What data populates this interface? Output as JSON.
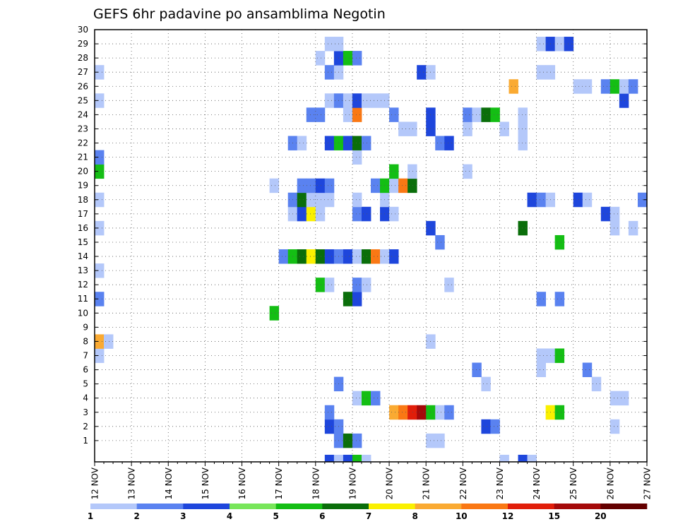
{
  "chart_data": {
    "type": "heatmap",
    "title": "GEFS 6hr padavine po ansamblima Negotin",
    "xlabel": "",
    "ylabel": "",
    "x_tick_labels": [
      "12 NOV",
      "13 NOV",
      "14 NOV",
      "15 NOV",
      "16 NOV",
      "17 NOV",
      "18 NOV",
      "19 NOV",
      "20 NOV",
      "21 NOV",
      "22 NOV",
      "23 NOV",
      "24 NOV",
      "25 NOV",
      "26 NOV",
      "27 NOV"
    ],
    "x_steps_per_day": 4,
    "y_tick_labels": [
      "1",
      "2",
      "3",
      "4",
      "5",
      "6",
      "7",
      "8",
      "9",
      "10",
      "11",
      "12",
      "13",
      "14",
      "15",
      "16",
      "17",
      "18",
      "19",
      "20",
      "21",
      "22",
      "23",
      "24",
      "25",
      "26",
      "27",
      "28",
      "29",
      "30"
    ],
    "grid": true,
    "colorbar": {
      "labels": [
        "1",
        "2",
        "3",
        "4",
        "5",
        "6",
        "7",
        "8",
        "10",
        "12",
        "15",
        "20"
      ],
      "colors": [
        "#b4c8fa",
        "#5a82f0",
        "#1e46dc",
        "#78e65a",
        "#14be14",
        "#0a6e0a",
        "#faf000",
        "#faaa32",
        "#fa7814",
        "#e11e0a",
        "#a50a0a",
        "#640000"
      ]
    },
    "cells": [
      {
        "x": 25,
        "y": 0,
        "v": 3
      },
      {
        "x": 26,
        "y": 0,
        "v": 1
      },
      {
        "x": 27,
        "y": 0,
        "v": 3
      },
      {
        "x": 28,
        "y": 0,
        "v": 5
      },
      {
        "x": 29,
        "y": 0,
        "v": 1
      },
      {
        "x": 44,
        "y": 0,
        "v": 1
      },
      {
        "x": 46,
        "y": 0,
        "v": 3
      },
      {
        "x": 47,
        "y": 0,
        "v": 1
      },
      {
        "x": 26,
        "y": 1,
        "v": 2
      },
      {
        "x": 27,
        "y": 1,
        "v": 6
      },
      {
        "x": 28,
        "y": 1,
        "v": 2
      },
      {
        "x": 36,
        "y": 1,
        "v": 1
      },
      {
        "x": 37,
        "y": 1,
        "v": 1
      },
      {
        "x": 25,
        "y": 2,
        "v": 3
      },
      {
        "x": 26,
        "y": 2,
        "v": 2
      },
      {
        "x": 42,
        "y": 2,
        "v": 3
      },
      {
        "x": 43,
        "y": 2,
        "v": 2
      },
      {
        "x": 56,
        "y": 2,
        "v": 1
      },
      {
        "x": 25,
        "y": 3,
        "v": 2
      },
      {
        "x": 32,
        "y": 3,
        "v": 8
      },
      {
        "x": 33,
        "y": 3,
        "v": 10
      },
      {
        "x": 34,
        "y": 3,
        "v": 12
      },
      {
        "x": 35,
        "y": 3,
        "v": 15
      },
      {
        "x": 36,
        "y": 3,
        "v": 5
      },
      {
        "x": 37,
        "y": 3,
        "v": 1
      },
      {
        "x": 38,
        "y": 3,
        "v": 2
      },
      {
        "x": 49,
        "y": 3,
        "v": 7
      },
      {
        "x": 50,
        "y": 3,
        "v": 5
      },
      {
        "x": 28,
        "y": 4,
        "v": 1
      },
      {
        "x": 29,
        "y": 4,
        "v": 5
      },
      {
        "x": 30,
        "y": 4,
        "v": 2
      },
      {
        "x": 56,
        "y": 4,
        "v": 1
      },
      {
        "x": 57,
        "y": 4,
        "v": 1
      },
      {
        "x": 26,
        "y": 5,
        "v": 2
      },
      {
        "x": 42,
        "y": 5,
        "v": 1
      },
      {
        "x": 54,
        "y": 5,
        "v": 1
      },
      {
        "x": 41,
        "y": 6,
        "v": 2
      },
      {
        "x": 48,
        "y": 6,
        "v": 1
      },
      {
        "x": 53,
        "y": 6,
        "v": 2
      },
      {
        "x": 0,
        "y": 7,
        "v": 1
      },
      {
        "x": 48,
        "y": 7,
        "v": 1
      },
      {
        "x": 49,
        "y": 7,
        "v": 1
      },
      {
        "x": 50,
        "y": 7,
        "v": 5
      },
      {
        "x": 0,
        "y": 8,
        "v": 8
      },
      {
        "x": 1,
        "y": 8,
        "v": 1
      },
      {
        "x": 36,
        "y": 8,
        "v": 1
      },
      {
        "x": 19,
        "y": 10,
        "v": 5
      },
      {
        "x": 0,
        "y": 11,
        "v": 2
      },
      {
        "x": 27,
        "y": 11,
        "v": 6
      },
      {
        "x": 28,
        "y": 11,
        "v": 3
      },
      {
        "x": 48,
        "y": 11,
        "v": 2
      },
      {
        "x": 50,
        "y": 11,
        "v": 2
      },
      {
        "x": 24,
        "y": 12,
        "v": 5
      },
      {
        "x": 25,
        "y": 12,
        "v": 1
      },
      {
        "x": 28,
        "y": 12,
        "v": 2
      },
      {
        "x": 29,
        "y": 12,
        "v": 1
      },
      {
        "x": 38,
        "y": 12,
        "v": 1
      },
      {
        "x": 0,
        "y": 13,
        "v": 1
      },
      {
        "x": 20,
        "y": 14,
        "v": 2
      },
      {
        "x": 21,
        "y": 14,
        "v": 5
      },
      {
        "x": 22,
        "y": 14,
        "v": 6
      },
      {
        "x": 23,
        "y": 14,
        "v": 7
      },
      {
        "x": 24,
        "y": 14,
        "v": 6
      },
      {
        "x": 25,
        "y": 14,
        "v": 3
      },
      {
        "x": 26,
        "y": 14,
        "v": 2
      },
      {
        "x": 27,
        "y": 14,
        "v": 3
      },
      {
        "x": 28,
        "y": 14,
        "v": 1
      },
      {
        "x": 29,
        "y": 14,
        "v": 6
      },
      {
        "x": 30,
        "y": 14,
        "v": 10
      },
      {
        "x": 31,
        "y": 14,
        "v": 1
      },
      {
        "x": 32,
        "y": 14,
        "v": 3
      },
      {
        "x": 37,
        "y": 15,
        "v": 2
      },
      {
        "x": 50,
        "y": 15,
        "v": 5
      },
      {
        "x": 0,
        "y": 16,
        "v": 1
      },
      {
        "x": 36,
        "y": 16,
        "v": 3
      },
      {
        "x": 46,
        "y": 16,
        "v": 6
      },
      {
        "x": 56,
        "y": 16,
        "v": 1
      },
      {
        "x": 58,
        "y": 16,
        "v": 1
      },
      {
        "x": 21,
        "y": 17,
        "v": 1
      },
      {
        "x": 22,
        "y": 17,
        "v": 3
      },
      {
        "x": 23,
        "y": 17,
        "v": 7
      },
      {
        "x": 24,
        "y": 17,
        "v": 1
      },
      {
        "x": 28,
        "y": 17,
        "v": 2
      },
      {
        "x": 29,
        "y": 17,
        "v": 3
      },
      {
        "x": 31,
        "y": 17,
        "v": 3
      },
      {
        "x": 32,
        "y": 17,
        "v": 1
      },
      {
        "x": 55,
        "y": 17,
        "v": 3
      },
      {
        "x": 56,
        "y": 17,
        "v": 1
      },
      {
        "x": 0,
        "y": 18,
        "v": 1
      },
      {
        "x": 21,
        "y": 18,
        "v": 2
      },
      {
        "x": 22,
        "y": 18,
        "v": 6
      },
      {
        "x": 23,
        "y": 18,
        "v": 1
      },
      {
        "x": 24,
        "y": 18,
        "v": 1
      },
      {
        "x": 25,
        "y": 18,
        "v": 1
      },
      {
        "x": 28,
        "y": 18,
        "v": 1
      },
      {
        "x": 31,
        "y": 18,
        "v": 1
      },
      {
        "x": 47,
        "y": 18,
        "v": 3
      },
      {
        "x": 48,
        "y": 18,
        "v": 2
      },
      {
        "x": 49,
        "y": 18,
        "v": 1
      },
      {
        "x": 52,
        "y": 18,
        "v": 3
      },
      {
        "x": 53,
        "y": 18,
        "v": 1
      },
      {
        "x": 59,
        "y": 18,
        "v": 2
      },
      {
        "x": 19,
        "y": 19,
        "v": 1
      },
      {
        "x": 22,
        "y": 19,
        "v": 2
      },
      {
        "x": 23,
        "y": 19,
        "v": 2
      },
      {
        "x": 24,
        "y": 19,
        "v": 3
      },
      {
        "x": 25,
        "y": 19,
        "v": 2
      },
      {
        "x": 30,
        "y": 19,
        "v": 2
      },
      {
        "x": 31,
        "y": 19,
        "v": 5
      },
      {
        "x": 32,
        "y": 19,
        "v": 1
      },
      {
        "x": 33,
        "y": 19,
        "v": 10
      },
      {
        "x": 34,
        "y": 19,
        "v": 6
      },
      {
        "x": 0,
        "y": 20,
        "v": 5
      },
      {
        "x": 32,
        "y": 20,
        "v": 5
      },
      {
        "x": 34,
        "y": 20,
        "v": 1
      },
      {
        "x": 40,
        "y": 20,
        "v": 1
      },
      {
        "x": 0,
        "y": 21,
        "v": 2
      },
      {
        "x": 28,
        "y": 21,
        "v": 1
      },
      {
        "x": 21,
        "y": 22,
        "v": 2
      },
      {
        "x": 22,
        "y": 22,
        "v": 1
      },
      {
        "x": 25,
        "y": 22,
        "v": 3
      },
      {
        "x": 26,
        "y": 22,
        "v": 5
      },
      {
        "x": 27,
        "y": 22,
        "v": 3
      },
      {
        "x": 28,
        "y": 22,
        "v": 6
      },
      {
        "x": 29,
        "y": 22,
        "v": 2
      },
      {
        "x": 37,
        "y": 22,
        "v": 2
      },
      {
        "x": 38,
        "y": 22,
        "v": 3
      },
      {
        "x": 46,
        "y": 22,
        "v": 1
      },
      {
        "x": 33,
        "y": 23,
        "v": 1
      },
      {
        "x": 34,
        "y": 23,
        "v": 1
      },
      {
        "x": 36,
        "y": 23,
        "v": 3
      },
      {
        "x": 40,
        "y": 23,
        "v": 1
      },
      {
        "x": 44,
        "y": 23,
        "v": 1
      },
      {
        "x": 46,
        "y": 23,
        "v": 1
      },
      {
        "x": 23,
        "y": 24,
        "v": 2
      },
      {
        "x": 24,
        "y": 24,
        "v": 2
      },
      {
        "x": 27,
        "y": 24,
        "v": 1
      },
      {
        "x": 28,
        "y": 24,
        "v": 10
      },
      {
        "x": 32,
        "y": 24,
        "v": 2
      },
      {
        "x": 36,
        "y": 24,
        "v": 3
      },
      {
        "x": 40,
        "y": 24,
        "v": 2
      },
      {
        "x": 41,
        "y": 24,
        "v": 1
      },
      {
        "x": 42,
        "y": 24,
        "v": 6
      },
      {
        "x": 43,
        "y": 24,
        "v": 5
      },
      {
        "x": 46,
        "y": 24,
        "v": 1
      },
      {
        "x": 0,
        "y": 25,
        "v": 1
      },
      {
        "x": 25,
        "y": 25,
        "v": 1
      },
      {
        "x": 26,
        "y": 25,
        "v": 2
      },
      {
        "x": 27,
        "y": 25,
        "v": 1
      },
      {
        "x": 28,
        "y": 25,
        "v": 3
      },
      {
        "x": 29,
        "y": 25,
        "v": 1
      },
      {
        "x": 30,
        "y": 25,
        "v": 1
      },
      {
        "x": 31,
        "y": 25,
        "v": 1
      },
      {
        "x": 57,
        "y": 25,
        "v": 3
      },
      {
        "x": 45,
        "y": 26,
        "v": 8
      },
      {
        "x": 52,
        "y": 26,
        "v": 1
      },
      {
        "x": 53,
        "y": 26,
        "v": 1
      },
      {
        "x": 55,
        "y": 26,
        "v": 2
      },
      {
        "x": 56,
        "y": 26,
        "v": 5
      },
      {
        "x": 57,
        "y": 26,
        "v": 1
      },
      {
        "x": 58,
        "y": 26,
        "v": 2
      },
      {
        "x": 0,
        "y": 27,
        "v": 1
      },
      {
        "x": 25,
        "y": 27,
        "v": 2
      },
      {
        "x": 26,
        "y": 27,
        "v": 1
      },
      {
        "x": 35,
        "y": 27,
        "v": 3
      },
      {
        "x": 36,
        "y": 27,
        "v": 1
      },
      {
        "x": 48,
        "y": 27,
        "v": 1
      },
      {
        "x": 49,
        "y": 27,
        "v": 1
      },
      {
        "x": 24,
        "y": 28,
        "v": 1
      },
      {
        "x": 26,
        "y": 28,
        "v": 3
      },
      {
        "x": 27,
        "y": 28,
        "v": 5
      },
      {
        "x": 28,
        "y": 28,
        "v": 2
      },
      {
        "x": 25,
        "y": 29,
        "v": 1
      },
      {
        "x": 26,
        "y": 29,
        "v": 1
      },
      {
        "x": 48,
        "y": 29,
        "v": 1
      },
      {
        "x": 49,
        "y": 29,
        "v": 3
      },
      {
        "x": 50,
        "y": 29,
        "v": 1
      },
      {
        "x": 51,
        "y": 29,
        "v": 3
      }
    ]
  }
}
